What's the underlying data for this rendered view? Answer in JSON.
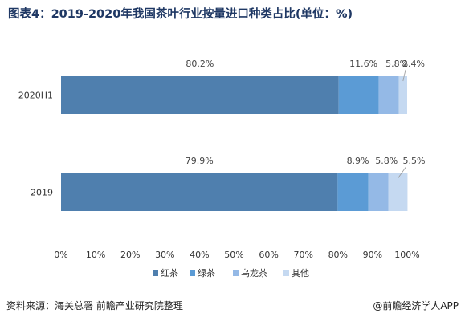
{
  "title": "图表4：2019-2020年我国茶叶行业按量进口种类占比(单位：%)",
  "source": "资料来源：海关总署 前瞻产业研究院整理",
  "credit": "@前瞻经济学人APP",
  "chart_data": {
    "type": "bar",
    "orientation": "horizontal",
    "stacked": true,
    "categories": [
      "2020H1",
      "2019"
    ],
    "series": [
      {
        "name": "红茶",
        "color": "#4f7fae",
        "values": [
          80.2,
          79.9
        ],
        "labels": [
          "80.2%",
          "79.9%"
        ]
      },
      {
        "name": "绿茶",
        "color": "#5b9bd5",
        "values": [
          11.6,
          8.9
        ],
        "labels": [
          "11.6%",
          "8.9%"
        ]
      },
      {
        "name": "乌龙茶",
        "color": "#94b9e6",
        "values": [
          5.8,
          5.8
        ],
        "labels": [
          "5.8%",
          "5.8%"
        ]
      },
      {
        "name": "其他",
        "color": "#c5d9f1",
        "values": [
          2.4,
          5.5
        ],
        "labels": [
          "2.4%",
          "5.5%"
        ]
      }
    ],
    "xlim": [
      0,
      100
    ],
    "xticks": [
      "0%",
      "10%",
      "20%",
      "30%",
      "40%",
      "50%",
      "60%",
      "70%",
      "80%",
      "90%",
      "100%"
    ],
    "grid": false,
    "legend_position": "bottom"
  }
}
